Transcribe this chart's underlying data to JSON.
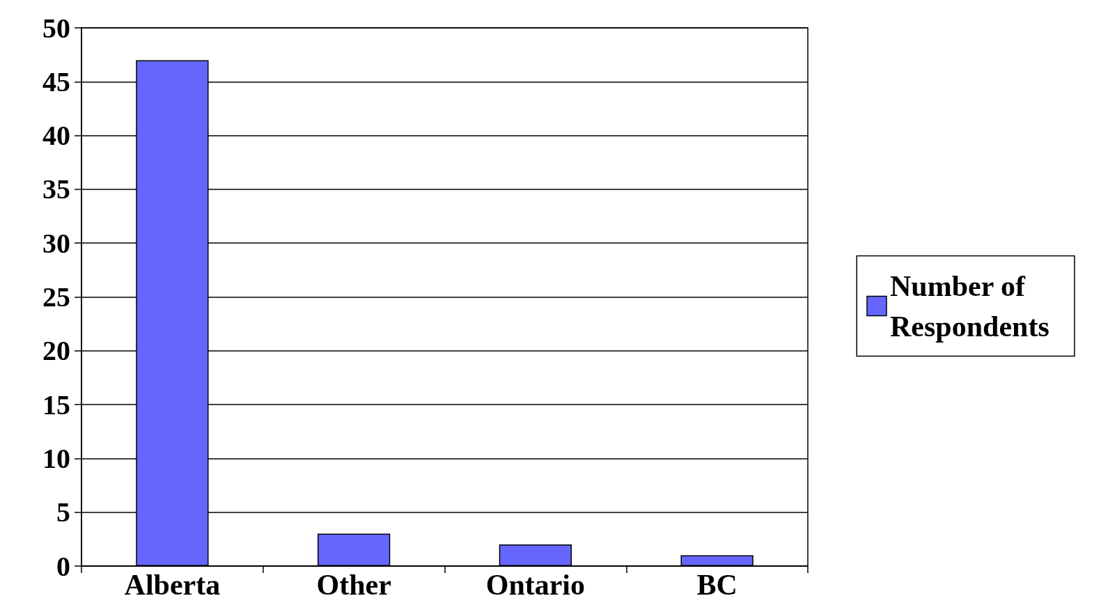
{
  "chart_data": {
    "type": "bar",
    "categories": [
      "Alberta",
      "Other",
      "Ontario",
      "BC"
    ],
    "series": [
      {
        "name": "Number of Respondents",
        "color": "#6666ff",
        "values": [
          47,
          3,
          2,
          1
        ]
      }
    ],
    "ylim": [
      0,
      50
    ],
    "yticks": [
      0,
      5,
      10,
      15,
      20,
      25,
      30,
      35,
      40,
      45,
      50
    ],
    "grid": "y",
    "legend": "right"
  }
}
